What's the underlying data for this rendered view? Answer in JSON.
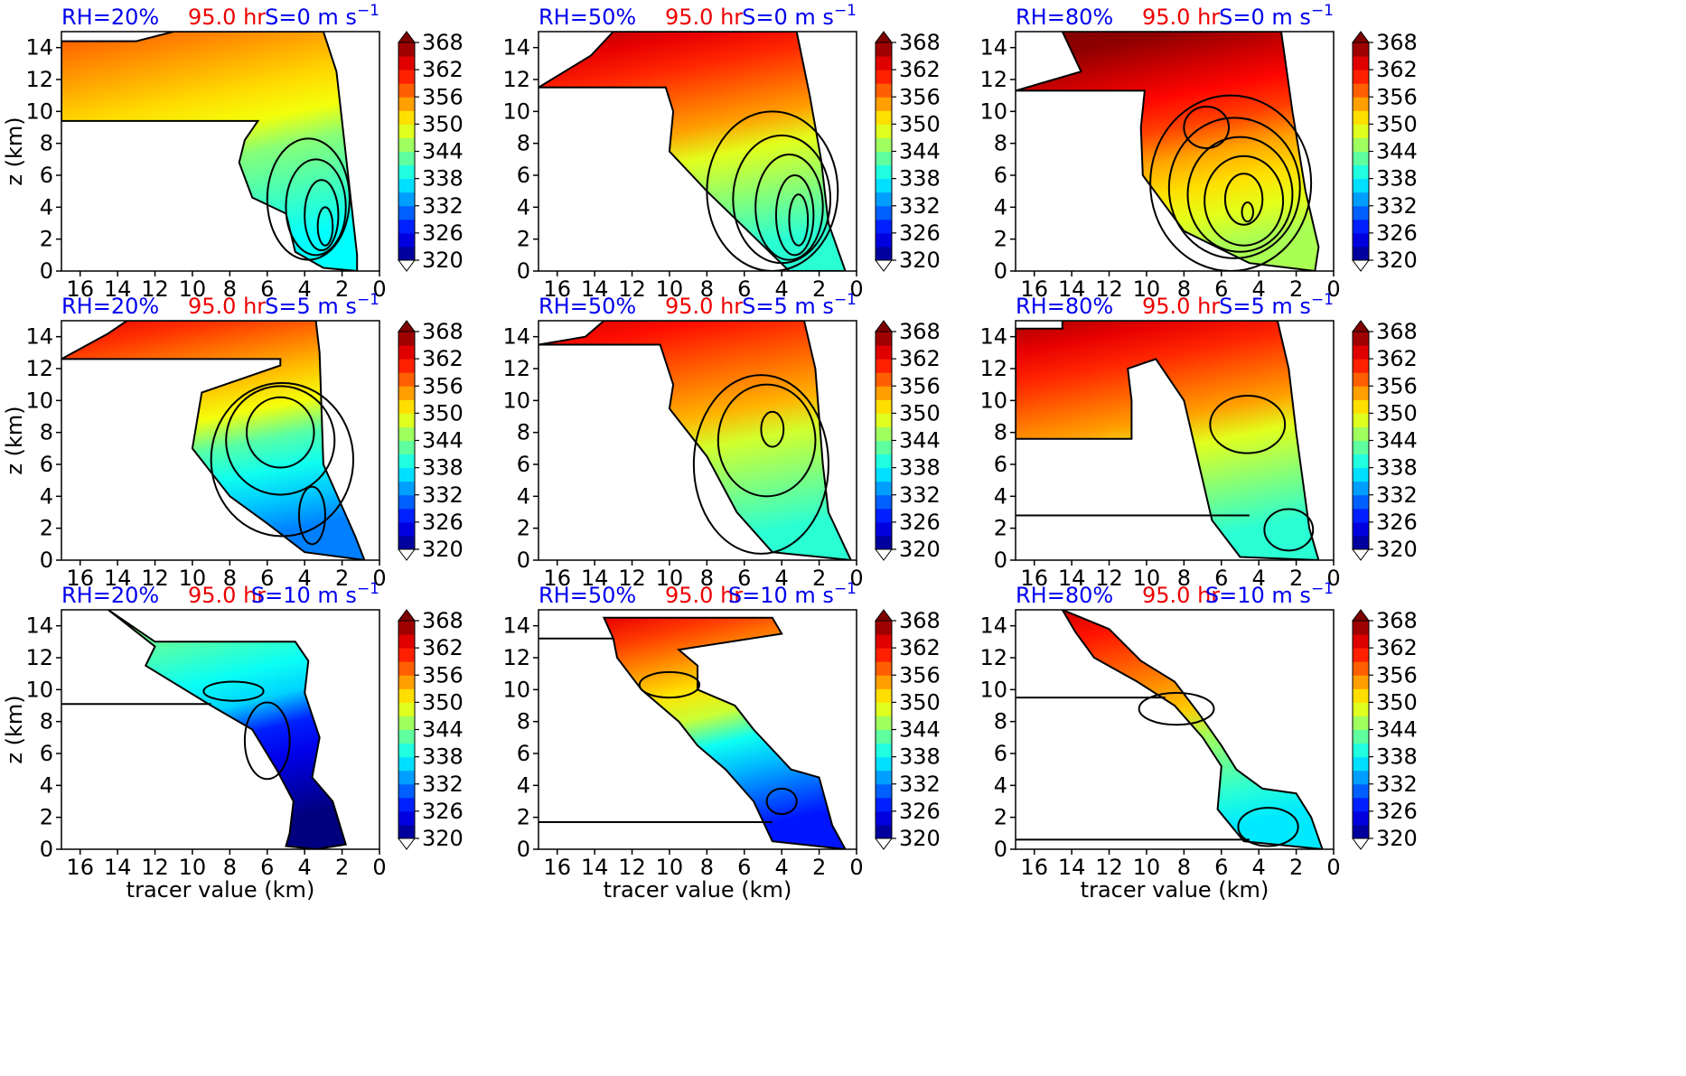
{
  "figure": {
    "x_label": "tracer value (km)",
    "y_label": "z (km)"
  },
  "colors": {
    "rh_text": "#0000ee",
    "time_text": "#ee0000",
    "shear_text": "#0000ee",
    "colormap": [
      "#00007f",
      "#0000ff",
      "#007fff",
      "#00ffff",
      "#7fff7f",
      "#ffff00",
      "#ff7f00",
      "#ff0000",
      "#7f0000"
    ]
  },
  "chart_data": [
    {
      "type": "heatmap",
      "rh": "RH=20%",
      "time": "95.0 hr",
      "shear": "S=0 m s",
      "shear_exp": "−1",
      "xlim": [
        17,
        0
      ],
      "ylim": [
        0,
        15
      ],
      "xticks": [
        16,
        14,
        12,
        10,
        8,
        6,
        4,
        2,
        0
      ],
      "yticks": [
        0,
        2,
        4,
        6,
        8,
        10,
        12,
        14
      ],
      "colorbar_ticks": [
        320,
        326,
        332,
        338,
        344,
        350,
        356,
        362,
        368
      ],
      "shape": [
        [
          11,
          15
        ],
        [
          13,
          14.4
        ],
        [
          17,
          14.4
        ],
        [
          17,
          9.4
        ],
        [
          6.5,
          9.4
        ],
        [
          7.2,
          8.2
        ],
        [
          7.5,
          6.8
        ],
        [
          6.8,
          4.6
        ],
        [
          5.0,
          3.6
        ],
        [
          4.5,
          1.2
        ],
        [
          3.0,
          0.2
        ],
        [
          1.2,
          0
        ],
        [
          1.2,
          1
        ],
        [
          2.3,
          12.5
        ],
        [
          3.0,
          15
        ]
      ],
      "top_value": 358,
      "bottom_value": 341,
      "left_offset": -3,
      "contours": [
        {
          "cx": 3.8,
          "cy": 4.5,
          "rx": 2.2,
          "ry": 3.8
        },
        {
          "cx": 3.4,
          "cy": 4,
          "rx": 1.6,
          "ry": 3
        },
        {
          "cx": 3.1,
          "cy": 3.5,
          "rx": 0.9,
          "ry": 2.2
        },
        {
          "cx": 2.9,
          "cy": 2.8,
          "rx": 0.4,
          "ry": 1.2
        }
      ],
      "hline": 9.4
    },
    {
      "type": "heatmap",
      "rh": "RH=50%",
      "time": "95.0 hr",
      "shear": "S=0 m s",
      "shear_exp": "−1",
      "xlim": [
        17,
        0
      ],
      "ylim": [
        0,
        15
      ],
      "xticks": [
        16,
        14,
        12,
        10,
        8,
        6,
        4,
        2,
        0
      ],
      "yticks": [
        0,
        2,
        4,
        6,
        8,
        10,
        12,
        14
      ],
      "colorbar_ticks": [
        320,
        326,
        332,
        338,
        344,
        350,
        356,
        362,
        368
      ],
      "shape": [
        [
          13,
          15
        ],
        [
          14.2,
          13.5
        ],
        [
          17,
          11.5
        ],
        [
          10.2,
          11.5
        ],
        [
          9.8,
          10
        ],
        [
          10,
          7.5
        ],
        [
          8.0,
          5.0
        ],
        [
          5.8,
          2.5
        ],
        [
          3.6,
          0
        ],
        [
          0.6,
          0
        ],
        [
          1.5,
          3
        ],
        [
          1.9,
          7
        ],
        [
          2.5,
          11
        ],
        [
          3.2,
          15
        ]
      ],
      "top_value": 366,
      "bottom_value": 343,
      "left_offset": -3,
      "contours": [
        {
          "cx": 4.5,
          "cy": 5,
          "rx": 3.5,
          "ry": 5
        },
        {
          "cx": 4.0,
          "cy": 4.5,
          "rx": 2.6,
          "ry": 4
        },
        {
          "cx": 3.6,
          "cy": 4,
          "rx": 1.8,
          "ry": 3.3
        },
        {
          "cx": 3.3,
          "cy": 3.5,
          "rx": 1.0,
          "ry": 2.5
        },
        {
          "cx": 3.1,
          "cy": 3.2,
          "rx": 0.5,
          "ry": 1.6
        }
      ],
      "hline": 11.5
    },
    {
      "type": "heatmap",
      "rh": "RH=80%",
      "time": "95.0 hr",
      "shear": "S=0 m s",
      "shear_exp": "−1",
      "xlim": [
        17,
        0
      ],
      "ylim": [
        0,
        15
      ],
      "xticks": [
        16,
        14,
        12,
        10,
        8,
        6,
        4,
        2,
        0
      ],
      "yticks": [
        0,
        2,
        4,
        6,
        8,
        10,
        12,
        14
      ],
      "colorbar_ticks": [
        320,
        326,
        332,
        338,
        344,
        350,
        356,
        362,
        368
      ],
      "shape": [
        [
          14.5,
          15
        ],
        [
          13.5,
          12.5
        ],
        [
          17,
          11.3
        ],
        [
          10.1,
          11.3
        ],
        [
          10.3,
          9
        ],
        [
          10.2,
          6
        ],
        [
          8,
          2.5
        ],
        [
          4.5,
          0.5
        ],
        [
          1.0,
          0
        ],
        [
          0.8,
          1.5
        ],
        [
          1.5,
          5
        ],
        [
          2.2,
          10
        ],
        [
          2.8,
          15
        ]
      ],
      "top_value": 370,
      "bottom_value": 348,
      "left_offset": -2,
      "contours": [
        {
          "cx": 5.5,
          "cy": 5.5,
          "rx": 4.3,
          "ry": 5.5
        },
        {
          "cx": 5.3,
          "cy": 5.2,
          "rx": 3.5,
          "ry": 4.4
        },
        {
          "cx": 5.0,
          "cy": 4.8,
          "rx": 2.8,
          "ry": 3.6
        },
        {
          "cx": 4.8,
          "cy": 4.4,
          "rx": 2.1,
          "ry": 2.8
        },
        {
          "cx": 6.8,
          "cy": 9.0,
          "rx": 1.2,
          "ry": 1.3
        },
        {
          "cx": 4.8,
          "cy": 4.5,
          "rx": 1.0,
          "ry": 1.6
        },
        {
          "cx": 4.6,
          "cy": 3.7,
          "rx": 0.3,
          "ry": 0.6
        }
      ],
      "hline": 11.3
    },
    {
      "type": "heatmap",
      "rh": "RH=20%",
      "time": "95.0 hr",
      "shear": "S=5 m s",
      "shear_exp": "−1",
      "xlim": [
        17,
        0
      ],
      "ylim": [
        0,
        15
      ],
      "xticks": [
        16,
        14,
        12,
        10,
        8,
        6,
        4,
        2,
        0
      ],
      "yticks": [
        0,
        2,
        4,
        6,
        8,
        10,
        12,
        14
      ],
      "colorbar_ticks": [
        320,
        326,
        332,
        338,
        344,
        350,
        356,
        362,
        368
      ],
      "shape": [
        [
          13.5,
          15
        ],
        [
          14.5,
          14.2
        ],
        [
          17,
          12.6
        ],
        [
          5.3,
          12.6
        ],
        [
          5.3,
          12.2
        ],
        [
          9.5,
          10.5
        ],
        [
          10,
          7
        ],
        [
          8,
          4
        ],
        [
          6,
          2.3
        ],
        [
          4.0,
          0.5
        ],
        [
          0.8,
          0
        ],
        [
          1.3,
          1.5
        ],
        [
          3.0,
          6
        ],
        [
          3.2,
          13
        ],
        [
          3.4,
          15
        ]
      ],
      "top_value": 363,
      "bottom_value": 336,
      "left_offset": -4,
      "contours": [
        {
          "cx": 5.2,
          "cy": 6.3,
          "rx": 3.8,
          "ry": 4.8
        },
        {
          "cx": 5.3,
          "cy": 7.5,
          "rx": 2.9,
          "ry": 3.4
        },
        {
          "cx": 5.3,
          "cy": 8.0,
          "rx": 1.8,
          "ry": 2.2
        },
        {
          "cx": 3.6,
          "cy": 2.8,
          "rx": 0.7,
          "ry": 1.8
        }
      ],
      "hline": 12.6
    },
    {
      "type": "heatmap",
      "rh": "RH=50%",
      "time": "95.0 hr",
      "shear": "S=5 m s",
      "shear_exp": "−1",
      "xlim": [
        17,
        0
      ],
      "ylim": [
        0,
        15
      ],
      "xticks": [
        16,
        14,
        12,
        10,
        8,
        6,
        4,
        2,
        0
      ],
      "yticks": [
        0,
        2,
        4,
        6,
        8,
        10,
        12,
        14
      ],
      "colorbar_ticks": [
        320,
        326,
        332,
        338,
        344,
        350,
        356,
        362,
        368
      ],
      "shape": [
        [
          13.5,
          15
        ],
        [
          14.5,
          14.0
        ],
        [
          17,
          13.5
        ],
        [
          10.5,
          13.5
        ],
        [
          9.8,
          11
        ],
        [
          10,
          9.5
        ],
        [
          8.0,
          6.5
        ],
        [
          6.4,
          3.0
        ],
        [
          4.5,
          0.5
        ],
        [
          0.3,
          0
        ],
        [
          1.5,
          3
        ],
        [
          1.8,
          6
        ],
        [
          2.2,
          12
        ],
        [
          2.8,
          15
        ]
      ],
      "top_value": 364,
      "bottom_value": 343,
      "left_offset": -3,
      "contours": [
        {
          "cx": 5.1,
          "cy": 6,
          "rx": 3.6,
          "ry": 5.6
        },
        {
          "cx": 4.8,
          "cy": 7.5,
          "rx": 2.6,
          "ry": 3.5
        },
        {
          "cx": 4.5,
          "cy": 8.2,
          "rx": 0.6,
          "ry": 1.1
        }
      ],
      "hline": 13.5
    },
    {
      "type": "heatmap",
      "rh": "RH=80%",
      "time": "95.0 hr",
      "shear": "S=5 m s",
      "shear_exp": "−1",
      "xlim": [
        17,
        0
      ],
      "ylim": [
        0,
        15
      ],
      "xticks": [
        16,
        14,
        12,
        10,
        8,
        6,
        4,
        2,
        0
      ],
      "yticks": [
        0,
        2,
        4,
        6,
        8,
        10,
        12,
        14
      ],
      "colorbar_ticks": [
        320,
        326,
        332,
        338,
        344,
        350,
        356,
        362,
        368
      ],
      "shape": [
        [
          14.5,
          15
        ],
        [
          14.5,
          14.5
        ],
        [
          17,
          14.5
        ],
        [
          17,
          7.6
        ],
        [
          10.8,
          7.6
        ],
        [
          10.8,
          10
        ],
        [
          11,
          12
        ],
        [
          9.5,
          12.6
        ],
        [
          8,
          10
        ],
        [
          7.0,
          5
        ],
        [
          6.5,
          2.5
        ],
        [
          5.0,
          0.2
        ],
        [
          0.8,
          0
        ],
        [
          1.3,
          2
        ],
        [
          2.0,
          8
        ],
        [
          2.4,
          12
        ],
        [
          3.0,
          15
        ]
      ],
      "top_value": 366,
      "bottom_value": 343,
      "left_offset": -3,
      "contours": [
        {
          "cx": 4.6,
          "cy": 8.5,
          "rx": 2.0,
          "ry": 1.8
        },
        {
          "cx": 2.4,
          "cy": 1.9,
          "rx": 1.3,
          "ry": 1.3
        }
      ],
      "hline": 7.6,
      "hline2": 2.8
    },
    {
      "type": "heatmap",
      "rh": "RH=20%",
      "time": "95.0 hr",
      "shear": "S=10 m s",
      "shear_exp": "−1",
      "xlim": [
        17,
        0
      ],
      "ylim": [
        0,
        15
      ],
      "xticks": [
        16,
        14,
        12,
        10,
        8,
        6,
        4,
        2,
        0
      ],
      "yticks": [
        0,
        2,
        4,
        6,
        8,
        10,
        12,
        14
      ],
      "colorbar_ticks": [
        320,
        326,
        332,
        338,
        344,
        350,
        356,
        362,
        368
      ],
      "shape": [
        [
          14.5,
          15
        ],
        [
          12,
          12.7
        ],
        [
          12.5,
          11.5
        ],
        [
          9,
          9
        ],
        [
          6.8,
          7.5
        ],
        [
          5.5,
          5
        ],
        [
          4.6,
          3
        ],
        [
          4.8,
          1
        ],
        [
          5.0,
          0.2
        ],
        [
          3.4,
          0
        ],
        [
          1.8,
          0.3
        ],
        [
          2.5,
          3
        ],
        [
          3.6,
          4.5
        ],
        [
          3.2,
          7
        ],
        [
          4.0,
          9.8
        ],
        [
          3.8,
          11.8
        ],
        [
          4.5,
          13
        ],
        [
          12,
          13
        ]
      ],
      "top_value": 346,
      "bottom_value": 326,
      "left_offset": -6,
      "contours": [
        {
          "cx": 7.8,
          "cy": 9.9,
          "rx": 1.6,
          "ry": 0.6
        },
        {
          "cx": 6.0,
          "cy": 6.8,
          "rx": 1.2,
          "ry": 2.4
        }
      ],
      "hline": 9.1
    },
    {
      "type": "heatmap",
      "rh": "RH=50%",
      "time": "95.0 hr",
      "shear": "S=10 m s",
      "shear_exp": "−1",
      "xlim": [
        17,
        0
      ],
      "ylim": [
        0,
        15
      ],
      "xticks": [
        16,
        14,
        12,
        10,
        8,
        6,
        4,
        2,
        0
      ],
      "yticks": [
        0,
        2,
        4,
        6,
        8,
        10,
        12,
        14
      ],
      "colorbar_ticks": [
        320,
        326,
        332,
        338,
        344,
        350,
        356,
        362,
        368
      ],
      "shape": [
        [
          13.5,
          14.5
        ],
        [
          13.0,
          13.2
        ],
        [
          12.8,
          12.0
        ],
        [
          11.5,
          10
        ],
        [
          9.5,
          8.0
        ],
        [
          8.5,
          6.5
        ],
        [
          7.0,
          5
        ],
        [
          5.5,
          3
        ],
        [
          4.5,
          0.5
        ],
        [
          0.6,
          0
        ],
        [
          1.3,
          1.5
        ],
        [
          2.0,
          4.5
        ],
        [
          3.5,
          5.0
        ],
        [
          5.5,
          7.5
        ],
        [
          6.5,
          9.0
        ],
        [
          8.5,
          10
        ],
        [
          8.5,
          11.5
        ],
        [
          9.5,
          12.5
        ],
        [
          4.0,
          13.5
        ],
        [
          4.5,
          14.5
        ]
      ],
      "top_value": 363,
      "bottom_value": 332,
      "left_offset": -5,
      "contours": [
        {
          "cx": 10.0,
          "cy": 10.3,
          "rx": 1.6,
          "ry": 0.8
        },
        {
          "cx": 4.0,
          "cy": 3.0,
          "rx": 0.8,
          "ry": 0.8
        }
      ],
      "hline": 13.2,
      "hline2": 1.7
    },
    {
      "type": "heatmap",
      "rh": "RH=80%",
      "time": "95.0 hr",
      "shear": "S=10 m s",
      "shear_exp": "−1",
      "xlim": [
        17,
        0
      ],
      "ylim": [
        0,
        15
      ],
      "xticks": [
        16,
        14,
        12,
        10,
        8,
        6,
        4,
        2,
        0
      ],
      "yticks": [
        0,
        2,
        4,
        6,
        8,
        10,
        12,
        14
      ],
      "colorbar_ticks": [
        320,
        326,
        332,
        338,
        344,
        350,
        356,
        362,
        368
      ],
      "shape": [
        [
          14.5,
          15
        ],
        [
          13.8,
          13.6
        ],
        [
          12.8,
          12
        ],
        [
          10.5,
          10.5
        ],
        [
          8.5,
          9
        ],
        [
          7.0,
          7.0
        ],
        [
          6.0,
          5.2
        ],
        [
          6.2,
          2.5
        ],
        [
          4.8,
          0.5
        ],
        [
          0.6,
          0
        ],
        [
          1.2,
          2
        ],
        [
          2.0,
          3.5
        ],
        [
          3.8,
          3.8
        ],
        [
          5.2,
          5.0
        ],
        [
          6.0,
          6.5
        ],
        [
          7.2,
          8.5
        ],
        [
          8.5,
          10.5
        ],
        [
          10.3,
          11.8
        ],
        [
          12,
          13.8
        ]
      ],
      "top_value": 364,
      "bottom_value": 341,
      "left_offset": -4,
      "contours": [
        {
          "cx": 8.4,
          "cy": 8.8,
          "rx": 2.0,
          "ry": 1.0
        },
        {
          "cx": 3.5,
          "cy": 1.4,
          "rx": 1.6,
          "ry": 1.2
        }
      ],
      "hline": 9.5,
      "hline2": 0.6
    }
  ]
}
